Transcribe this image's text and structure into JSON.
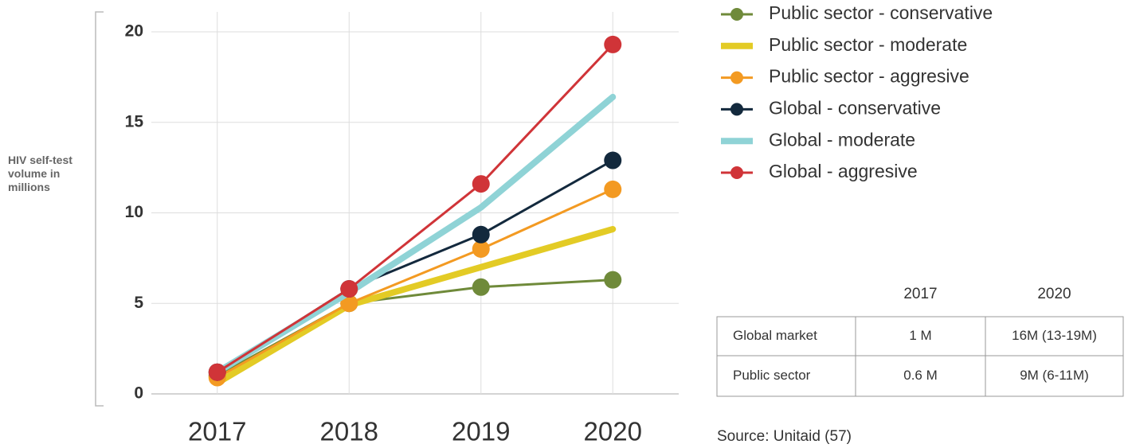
{
  "chart_data": {
    "type": "line",
    "y_label": "HIV self-test volume in millions",
    "categories": [
      "2017",
      "2018",
      "2019",
      "2020"
    ],
    "series": [
      {
        "name": "Public sector - conservative",
        "color": "#6f8a3a",
        "markers": true,
        "values": [
          1.0,
          5.0,
          5.9,
          6.3
        ]
      },
      {
        "name": "Public sector - moderate",
        "color": "#e3cb25",
        "markers": false,
        "values": [
          0.6,
          4.9,
          7.0,
          9.1
        ]
      },
      {
        "name": "Public sector - aggresive",
        "color": "#f39a22",
        "markers": true,
        "values": [
          0.9,
          5.0,
          8.0,
          11.3
        ]
      },
      {
        "name": "Global - conservative",
        "color": "#13293d",
        "markers": true,
        "values": [
          1.2,
          5.8,
          8.8,
          12.9
        ]
      },
      {
        "name": "Global - moderate",
        "color": "#8fd3d6",
        "markers": false,
        "values": [
          1.2,
          5.6,
          10.3,
          16.4
        ]
      },
      {
        "name": "Global - aggresive",
        "color": "#d03438",
        "markers": true,
        "values": [
          1.2,
          5.8,
          11.6,
          19.3
        ]
      }
    ],
    "ylim": [
      0,
      20
    ],
    "yticks": [
      0,
      5,
      10,
      15,
      20
    ],
    "grid": true
  },
  "table": {
    "header": [
      "2017",
      "2020"
    ],
    "rows": [
      [
        "Global market",
        "1 M",
        "16M (13-19M)"
      ],
      [
        "Public sector",
        "0.6 M",
        "9M (6-11M)"
      ]
    ]
  },
  "source": "Source: Unitaid (57)"
}
